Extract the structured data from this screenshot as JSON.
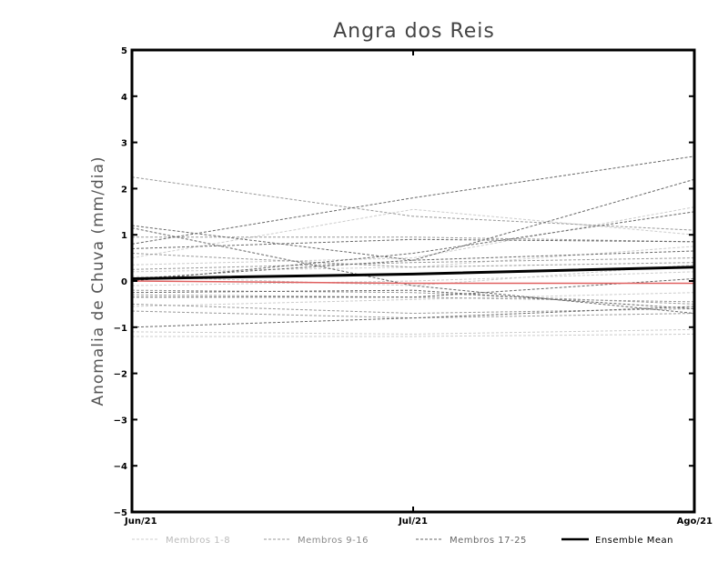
{
  "chart_data": {
    "type": "line",
    "title": "Angra dos Reis",
    "xlabel": "",
    "ylabel": "Anomalia de Chuva (mm/dia)",
    "categories": [
      "Jun/21",
      "Jul/21",
      "Ago/21"
    ],
    "ylim": [
      -5,
      5
    ],
    "yticks": [
      "5",
      "4",
      "3",
      "2",
      "1",
      "0",
      "−1",
      "−2",
      "−3",
      "−4",
      "−5"
    ],
    "grid": false,
    "legend_position": "bottom",
    "colors": {
      "group1": "#cccccc",
      "group2": "#999999",
      "group3": "#666666",
      "mean": "#000000",
      "zero_line": "#e06060"
    },
    "legend": [
      {
        "label": "Membros 1-8",
        "group": "group1",
        "dashed": true
      },
      {
        "label": "Membros 9-16",
        "group": "group2",
        "dashed": true
      },
      {
        "label": "Membros 17-25",
        "group": "group3",
        "dashed": true
      },
      {
        "label": "Ensemble Mean",
        "group": "mean",
        "dashed": false
      }
    ],
    "series": [
      {
        "group": "group1",
        "values": [
          0.5,
          1.55,
          1.0
        ]
      },
      {
        "group": "group1",
        "values": [
          0.35,
          0.5,
          1.6
        ]
      },
      {
        "group": "group1",
        "values": [
          0.2,
          0.3,
          0.75
        ]
      },
      {
        "group": "group1",
        "values": [
          0.1,
          -0.1,
          0.35
        ]
      },
      {
        "group": "group1",
        "values": [
          -0.1,
          0.0,
          0.2
        ]
      },
      {
        "group": "group1",
        "values": [
          -0.55,
          -0.4,
          -0.25
        ]
      },
      {
        "group": "group1",
        "values": [
          -1.1,
          -1.15,
          -1.05
        ]
      },
      {
        "group": "group1",
        "values": [
          -1.2,
          -1.2,
          -1.15
        ]
      },
      {
        "group": "group2",
        "values": [
          2.25,
          1.4,
          1.1
        ]
      },
      {
        "group": "group2",
        "values": [
          0.95,
          0.95,
          0.85
        ]
      },
      {
        "group": "group2",
        "values": [
          0.6,
          0.3,
          0.4
        ]
      },
      {
        "group": "group2",
        "values": [
          0.25,
          0.4,
          0.5
        ]
      },
      {
        "group": "group2",
        "values": [
          -0.2,
          -0.25,
          -0.5
        ]
      },
      {
        "group": "group2",
        "values": [
          -0.3,
          -0.35,
          -0.45
        ]
      },
      {
        "group": "group2",
        "values": [
          -0.5,
          -0.7,
          -0.6
        ]
      },
      {
        "group": "group2",
        "values": [
          -0.65,
          -0.8,
          -0.7
        ]
      },
      {
        "group": "group3",
        "values": [
          0.8,
          1.8,
          2.7
        ]
      },
      {
        "group": "group3",
        "values": [
          0.7,
          0.9,
          0.85
        ]
      },
      {
        "group": "group3",
        "values": [
          1.2,
          0.45,
          2.2
        ]
      },
      {
        "group": "group3",
        "values": [
          0.0,
          0.6,
          1.5
        ]
      },
      {
        "group": "group3",
        "values": [
          1.15,
          -0.1,
          -0.7
        ]
      },
      {
        "group": "group3",
        "values": [
          0.05,
          0.45,
          0.65
        ]
      },
      {
        "group": "group3",
        "values": [
          -0.35,
          -0.35,
          0.05
        ]
      },
      {
        "group": "group3",
        "values": [
          -0.25,
          -0.2,
          -0.6
        ]
      },
      {
        "group": "group3",
        "values": [
          -1.0,
          -0.8,
          -0.55
        ]
      }
    ],
    "ensemble_mean": [
      0.05,
      0.15,
      0.3
    ],
    "zero_line_series": [
      0.0,
      -0.05,
      -0.05
    ]
  }
}
